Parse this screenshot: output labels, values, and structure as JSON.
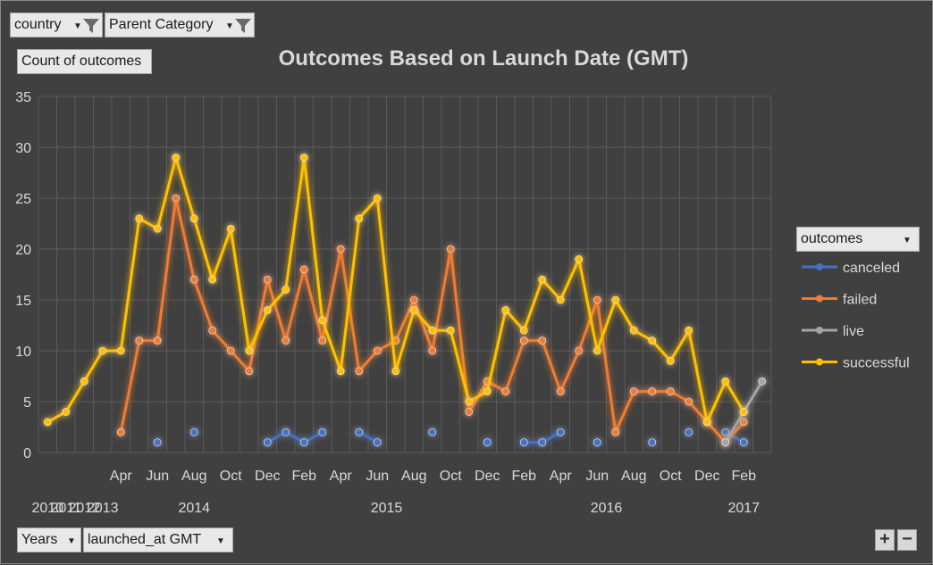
{
  "filters": {
    "country_label": "country",
    "parent_category_label": "Parent Category",
    "count_label": "Count of outcomes",
    "years_label": "Years",
    "launched_label": "launched_at  GMT",
    "legend_field_label": "outcomes",
    "zoom_in": "+",
    "zoom_out": "−"
  },
  "colors": {
    "background": "#404040",
    "grid": "#5a5a5a",
    "text": "#d9d9d9",
    "canceled": "#4472c4",
    "failed": "#ed7d31",
    "live": "#a5a5a5",
    "successful": "#ffc000"
  },
  "chart_data": {
    "type": "line",
    "title": "Outcomes Based on Launch Date (GMT)",
    "xlabel": "",
    "ylabel": "",
    "ylim": [
      0,
      35
    ],
    "yticks": [
      0,
      5,
      10,
      15,
      20,
      25,
      30,
      35
    ],
    "grid": true,
    "legend_position": "right",
    "month_tick_labels": [
      {
        "i": 4,
        "label": "Apr"
      },
      {
        "i": 6,
        "label": "Jun"
      },
      {
        "i": 8,
        "label": "Aug"
      },
      {
        "i": 10,
        "label": "Oct"
      },
      {
        "i": 12,
        "label": "Dec"
      },
      {
        "i": 14,
        "label": "Feb"
      },
      {
        "i": 16,
        "label": "Apr"
      },
      {
        "i": 18,
        "label": "Jun"
      },
      {
        "i": 20,
        "label": "Aug"
      },
      {
        "i": 22,
        "label": "Oct"
      },
      {
        "i": 24,
        "label": "Dec"
      },
      {
        "i": 26,
        "label": "Feb"
      },
      {
        "i": 28,
        "label": "Apr"
      },
      {
        "i": 30,
        "label": "Jun"
      },
      {
        "i": 32,
        "label": "Aug"
      },
      {
        "i": 34,
        "label": "Oct"
      },
      {
        "i": 36,
        "label": "Dec"
      },
      {
        "i": 38,
        "label": "Feb"
      }
    ],
    "year_tick_labels": [
      {
        "i": 0,
        "label": "2010"
      },
      {
        "i": 1,
        "label": "2011"
      },
      {
        "i": 2,
        "label": "2012"
      },
      {
        "i": 3,
        "label": "2013"
      },
      {
        "i": 8,
        "label": "2014"
      },
      {
        "i": 18.5,
        "label": "2015"
      },
      {
        "i": 30.5,
        "label": "2016"
      },
      {
        "i": 38,
        "label": "2017"
      }
    ],
    "point_count": 40,
    "series": [
      {
        "name": "canceled",
        "values": [
          null,
          null,
          null,
          null,
          null,
          null,
          1,
          null,
          2,
          null,
          null,
          null,
          1,
          2,
          1,
          2,
          null,
          2,
          1,
          null,
          null,
          2,
          null,
          null,
          1,
          null,
          1,
          1,
          2,
          null,
          1,
          null,
          null,
          1,
          null,
          2,
          null,
          2,
          1,
          null
        ]
      },
      {
        "name": "failed",
        "values": [
          null,
          null,
          null,
          null,
          2,
          11,
          11,
          25,
          17,
          12,
          10,
          8,
          17,
          11,
          18,
          11,
          20,
          8,
          10,
          11,
          15,
          10,
          20,
          4,
          7,
          6,
          11,
          11,
          6,
          10,
          15,
          2,
          6,
          6,
          6,
          5,
          3,
          1,
          3,
          null
        ]
      },
      {
        "name": "live",
        "values": [
          null,
          null,
          null,
          null,
          null,
          null,
          null,
          null,
          null,
          null,
          null,
          null,
          null,
          null,
          null,
          null,
          null,
          null,
          null,
          null,
          null,
          null,
          null,
          null,
          null,
          null,
          null,
          null,
          null,
          null,
          null,
          null,
          null,
          null,
          null,
          null,
          null,
          1,
          4,
          7
        ]
      },
      {
        "name": "successful",
        "values": [
          3,
          4,
          7,
          10,
          10,
          23,
          22,
          29,
          23,
          17,
          22,
          10,
          14,
          16,
          29,
          13,
          8,
          23,
          25,
          8,
          14,
          12,
          12,
          5,
          6,
          14,
          12,
          17,
          15,
          19,
          10,
          15,
          12,
          11,
          9,
          12,
          3,
          7,
          4,
          null
        ]
      }
    ]
  }
}
